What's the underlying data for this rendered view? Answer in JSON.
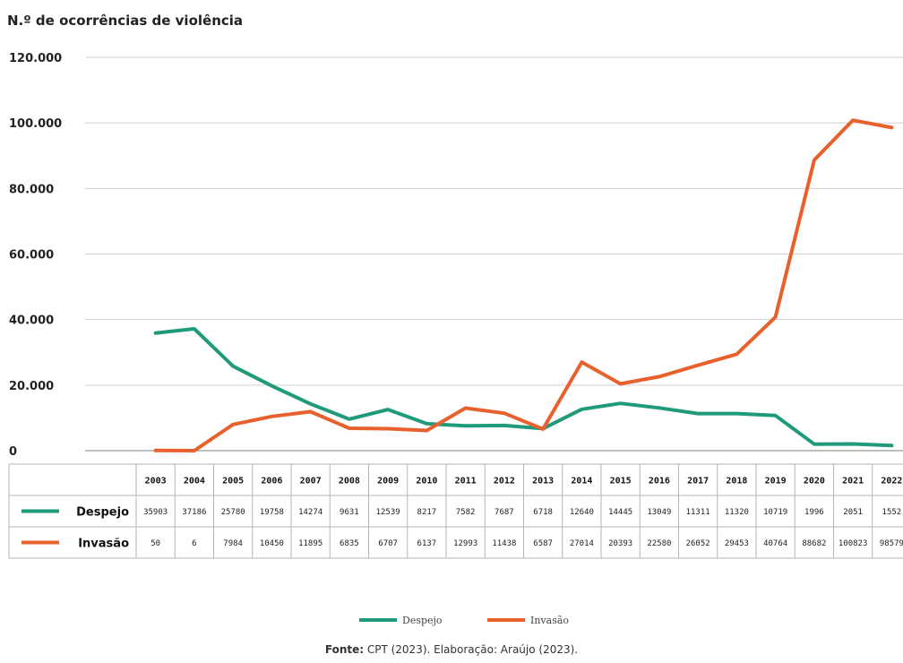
{
  "chart_data": {
    "type": "line",
    "title": "",
    "ylabel": "N.º de ocorrências de violência",
    "xlabel": "",
    "ylim": [
      0,
      120000
    ],
    "yticks": [
      "0",
      "20.000",
      "40.000",
      "60.000",
      "80.000",
      "100.000",
      "120.000"
    ],
    "yticks_values": [
      0,
      20000,
      40000,
      60000,
      80000,
      100000,
      120000
    ],
    "grid": true,
    "categories": [
      "2003",
      "2004",
      "2005",
      "2006",
      "2007",
      "2008",
      "2009",
      "2010",
      "2011",
      "2012",
      "2013",
      "2014",
      "2015",
      "2016",
      "2017",
      "2018",
      "2019",
      "2020",
      "2021",
      "2022"
    ],
    "series": [
      {
        "name": "Despejo",
        "color": "#1f9a7a",
        "values": [
          35903,
          37186,
          25780,
          19758,
          14274,
          9631,
          12539,
          8217,
          7582,
          7687,
          6718,
          12640,
          14445,
          13049,
          11311,
          11320,
          10719,
          1996,
          2051,
          1552
        ],
        "labels": [
          "35903",
          "37186",
          "25780",
          "19758",
          "14274",
          "9631",
          "12539",
          "8217",
          "7582",
          "7687",
          "6718",
          "12640",
          "14445",
          "13049",
          "11311",
          "11320",
          "10719",
          "1996",
          "2051",
          "1552"
        ]
      },
      {
        "name": "Invasão",
        "color": "#e8612c",
        "values": [
          50,
          6,
          7984,
          10450,
          11895,
          6835,
          6707,
          6137,
          12993,
          11438,
          6587,
          27014,
          20393,
          22580,
          26052,
          29453,
          40764,
          88682,
          100823,
          98579
        ],
        "labels": [
          "50",
          "6",
          "7984",
          "10450",
          "11895",
          "6835",
          "6707",
          "6137",
          "12993",
          "11438",
          "6587",
          "27014",
          "20393",
          "22580",
          "26052",
          "29453",
          "40764",
          "88682",
          "100823",
          "98579"
        ]
      }
    ],
    "table": true,
    "legend": "bottom-center"
  },
  "source": {
    "label": "Fonte:",
    "text": " CPT (2023). Elaboração: Araújo (2023)."
  }
}
